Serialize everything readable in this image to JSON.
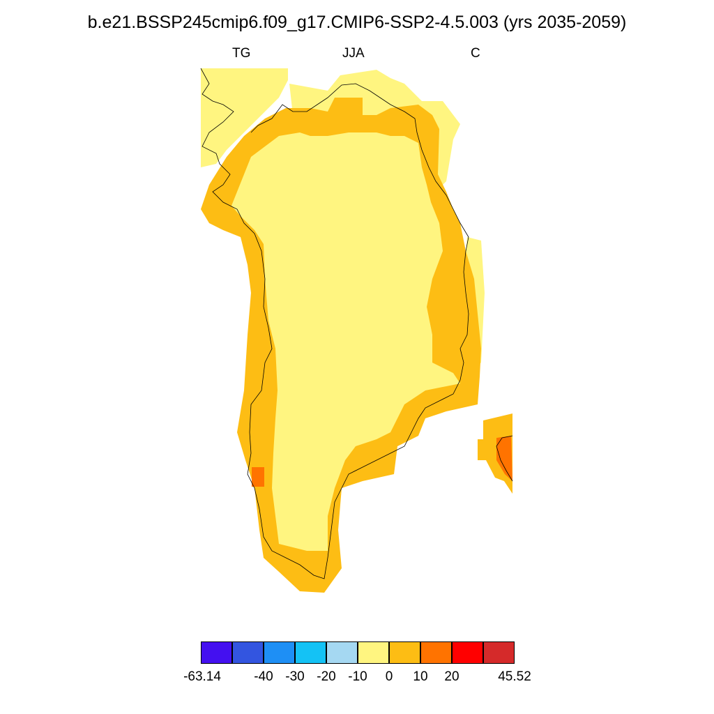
{
  "title": "b.e21.BSSP245cmip6.f09_g17.CMIP6-SSP2-4.5.003 (yrs 2035-2059)",
  "left_label": "TG",
  "center_label": "JJA",
  "right_label": "C",
  "colorbar": {
    "colors": [
      "#4410f0",
      "#3355e0",
      "#1e8ff5",
      "#14c2f5",
      "#a5d8f2",
      "#fff580",
      "#fdbd14",
      "#ff7300",
      "#ff0000",
      "#d52a2a"
    ],
    "labels": [
      "-63.14",
      "-40",
      "-30",
      "-20",
      "-10",
      "0",
      "10",
      "20",
      "45.52"
    ]
  },
  "map_colors": {
    "pale_yellow": "#fff580",
    "gold": "#fdbd14",
    "orange": "#ff7300",
    "coast": "#000000"
  }
}
